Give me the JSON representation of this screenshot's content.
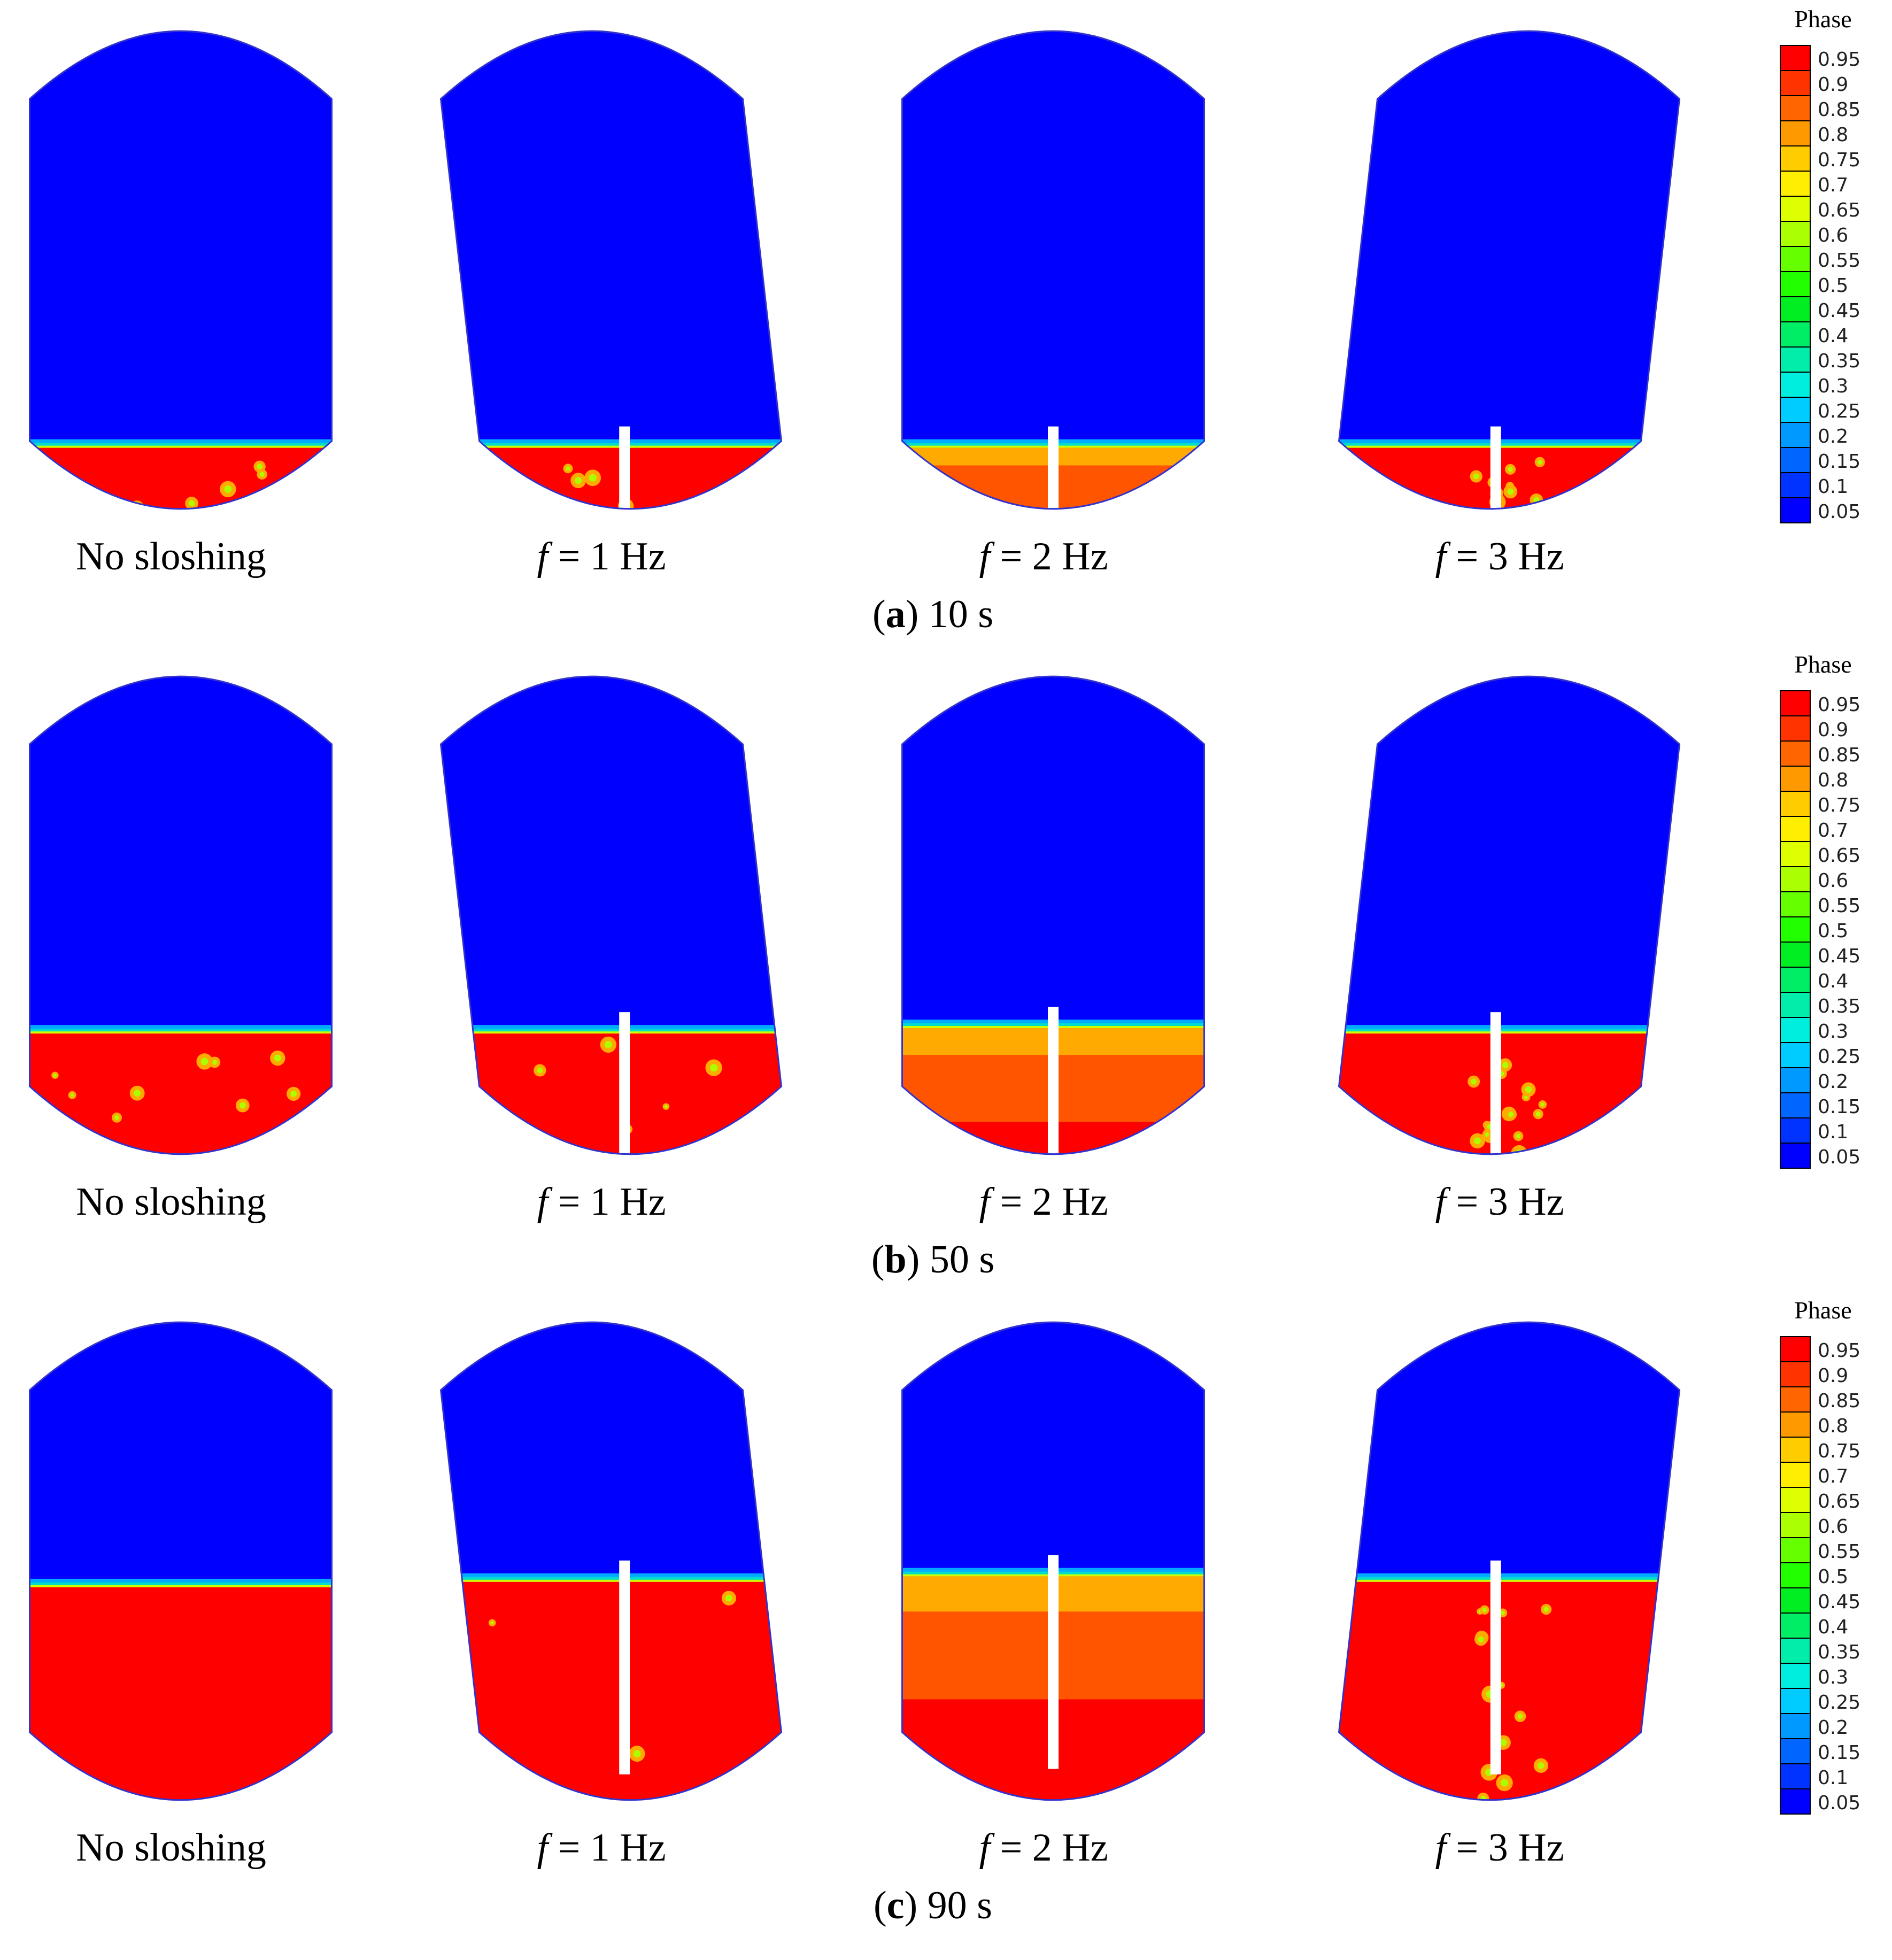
{
  "figure": {
    "colorbar_title": "Phase",
    "colorbar_ticks": [
      "0.95",
      "0.9",
      "0.85",
      "0.8",
      "0.75",
      "0.7",
      "0.65",
      "0.6",
      "0.55",
      "0.5",
      "0.45",
      "0.4",
      "0.35",
      "0.3",
      "0.25",
      "0.2",
      "0.15",
      "0.1",
      "0.05"
    ],
    "colorbar_colors": [
      "#ff0000",
      "#ff3300",
      "#ff6600",
      "#ff9900",
      "#ffcc00",
      "#ffee00",
      "#ddff00",
      "#aaff00",
      "#66ff00",
      "#22ff00",
      "#00ee22",
      "#00ee66",
      "#00eeaa",
      "#00eedd",
      "#00ccff",
      "#0099ff",
      "#0066ff",
      "#0033ff",
      "#0000ff"
    ],
    "colors": {
      "air": "#0000ff",
      "liquid": "#ff0000",
      "liquid_mixed": "#ff5500",
      "interface": "#00ddcc",
      "pipe": "#ffffff"
    },
    "rows": [
      {
        "caption_letter": "a",
        "caption_time": " 10 s",
        "panels": [
          {
            "label_prefix": "",
            "label": "No sloshing",
            "fill": 0.18,
            "mixed": 0.0,
            "tilt": 0.0,
            "pipe": false,
            "bubbles": 8
          },
          {
            "label_prefix": "f",
            "label": " = 1 Hz",
            "fill": 0.18,
            "mixed": 0.0,
            "tilt": 1.0,
            "pipe": true,
            "bubbles": 6
          },
          {
            "label_prefix": "f",
            "label": " = 2 Hz",
            "fill": 0.18,
            "mixed": 0.6,
            "tilt": 0.0,
            "pipe": true,
            "bubbles": 0
          },
          {
            "label_prefix": "f",
            "label": " = 3 Hz",
            "fill": 0.18,
            "mixed": 0.0,
            "tilt": -1.0,
            "pipe": true,
            "bubbles": 10
          }
        ]
      },
      {
        "caption_letter": "b",
        "caption_time": " 50 s",
        "panels": [
          {
            "label_prefix": "",
            "label": "No sloshing",
            "fill": 0.29,
            "mixed": 0.0,
            "tilt": 0.0,
            "pipe": false,
            "bubbles": 14
          },
          {
            "label_prefix": "f",
            "label": " = 1 Hz",
            "fill": 0.29,
            "mixed": 0.0,
            "tilt": 1.0,
            "pipe": true,
            "bubbles": 12
          },
          {
            "label_prefix": "f",
            "label": " = 2 Hz",
            "fill": 0.3,
            "mixed": 0.55,
            "tilt": 0.0,
            "pipe": true,
            "bubbles": 0
          },
          {
            "label_prefix": "f",
            "label": " = 3 Hz",
            "fill": 0.29,
            "mixed": 0.0,
            "tilt": -1.0,
            "pipe": true,
            "bubbles": 18
          }
        ]
      },
      {
        "caption_letter": "c",
        "caption_time": " 90 s",
        "panels": [
          {
            "label_prefix": "",
            "label": "No sloshing",
            "fill": 0.46,
            "mixed": 0.0,
            "tilt": 0.0,
            "pipe": false,
            "bubbles": 0
          },
          {
            "label_prefix": "f",
            "label": " = 1 Hz",
            "fill": 0.47,
            "mixed": 0.0,
            "tilt": 1.0,
            "pipe": true,
            "bubbles": 3
          },
          {
            "label_prefix": "f",
            "label": " = 2 Hz",
            "fill": 0.48,
            "mixed": 0.45,
            "tilt": 0.0,
            "pipe": true,
            "bubbles": 0
          },
          {
            "label_prefix": "f",
            "label": " = 3 Hz",
            "fill": 0.47,
            "mixed": 0.0,
            "tilt": -1.0,
            "pipe": true,
            "bubbles": 16
          }
        ]
      }
    ]
  }
}
